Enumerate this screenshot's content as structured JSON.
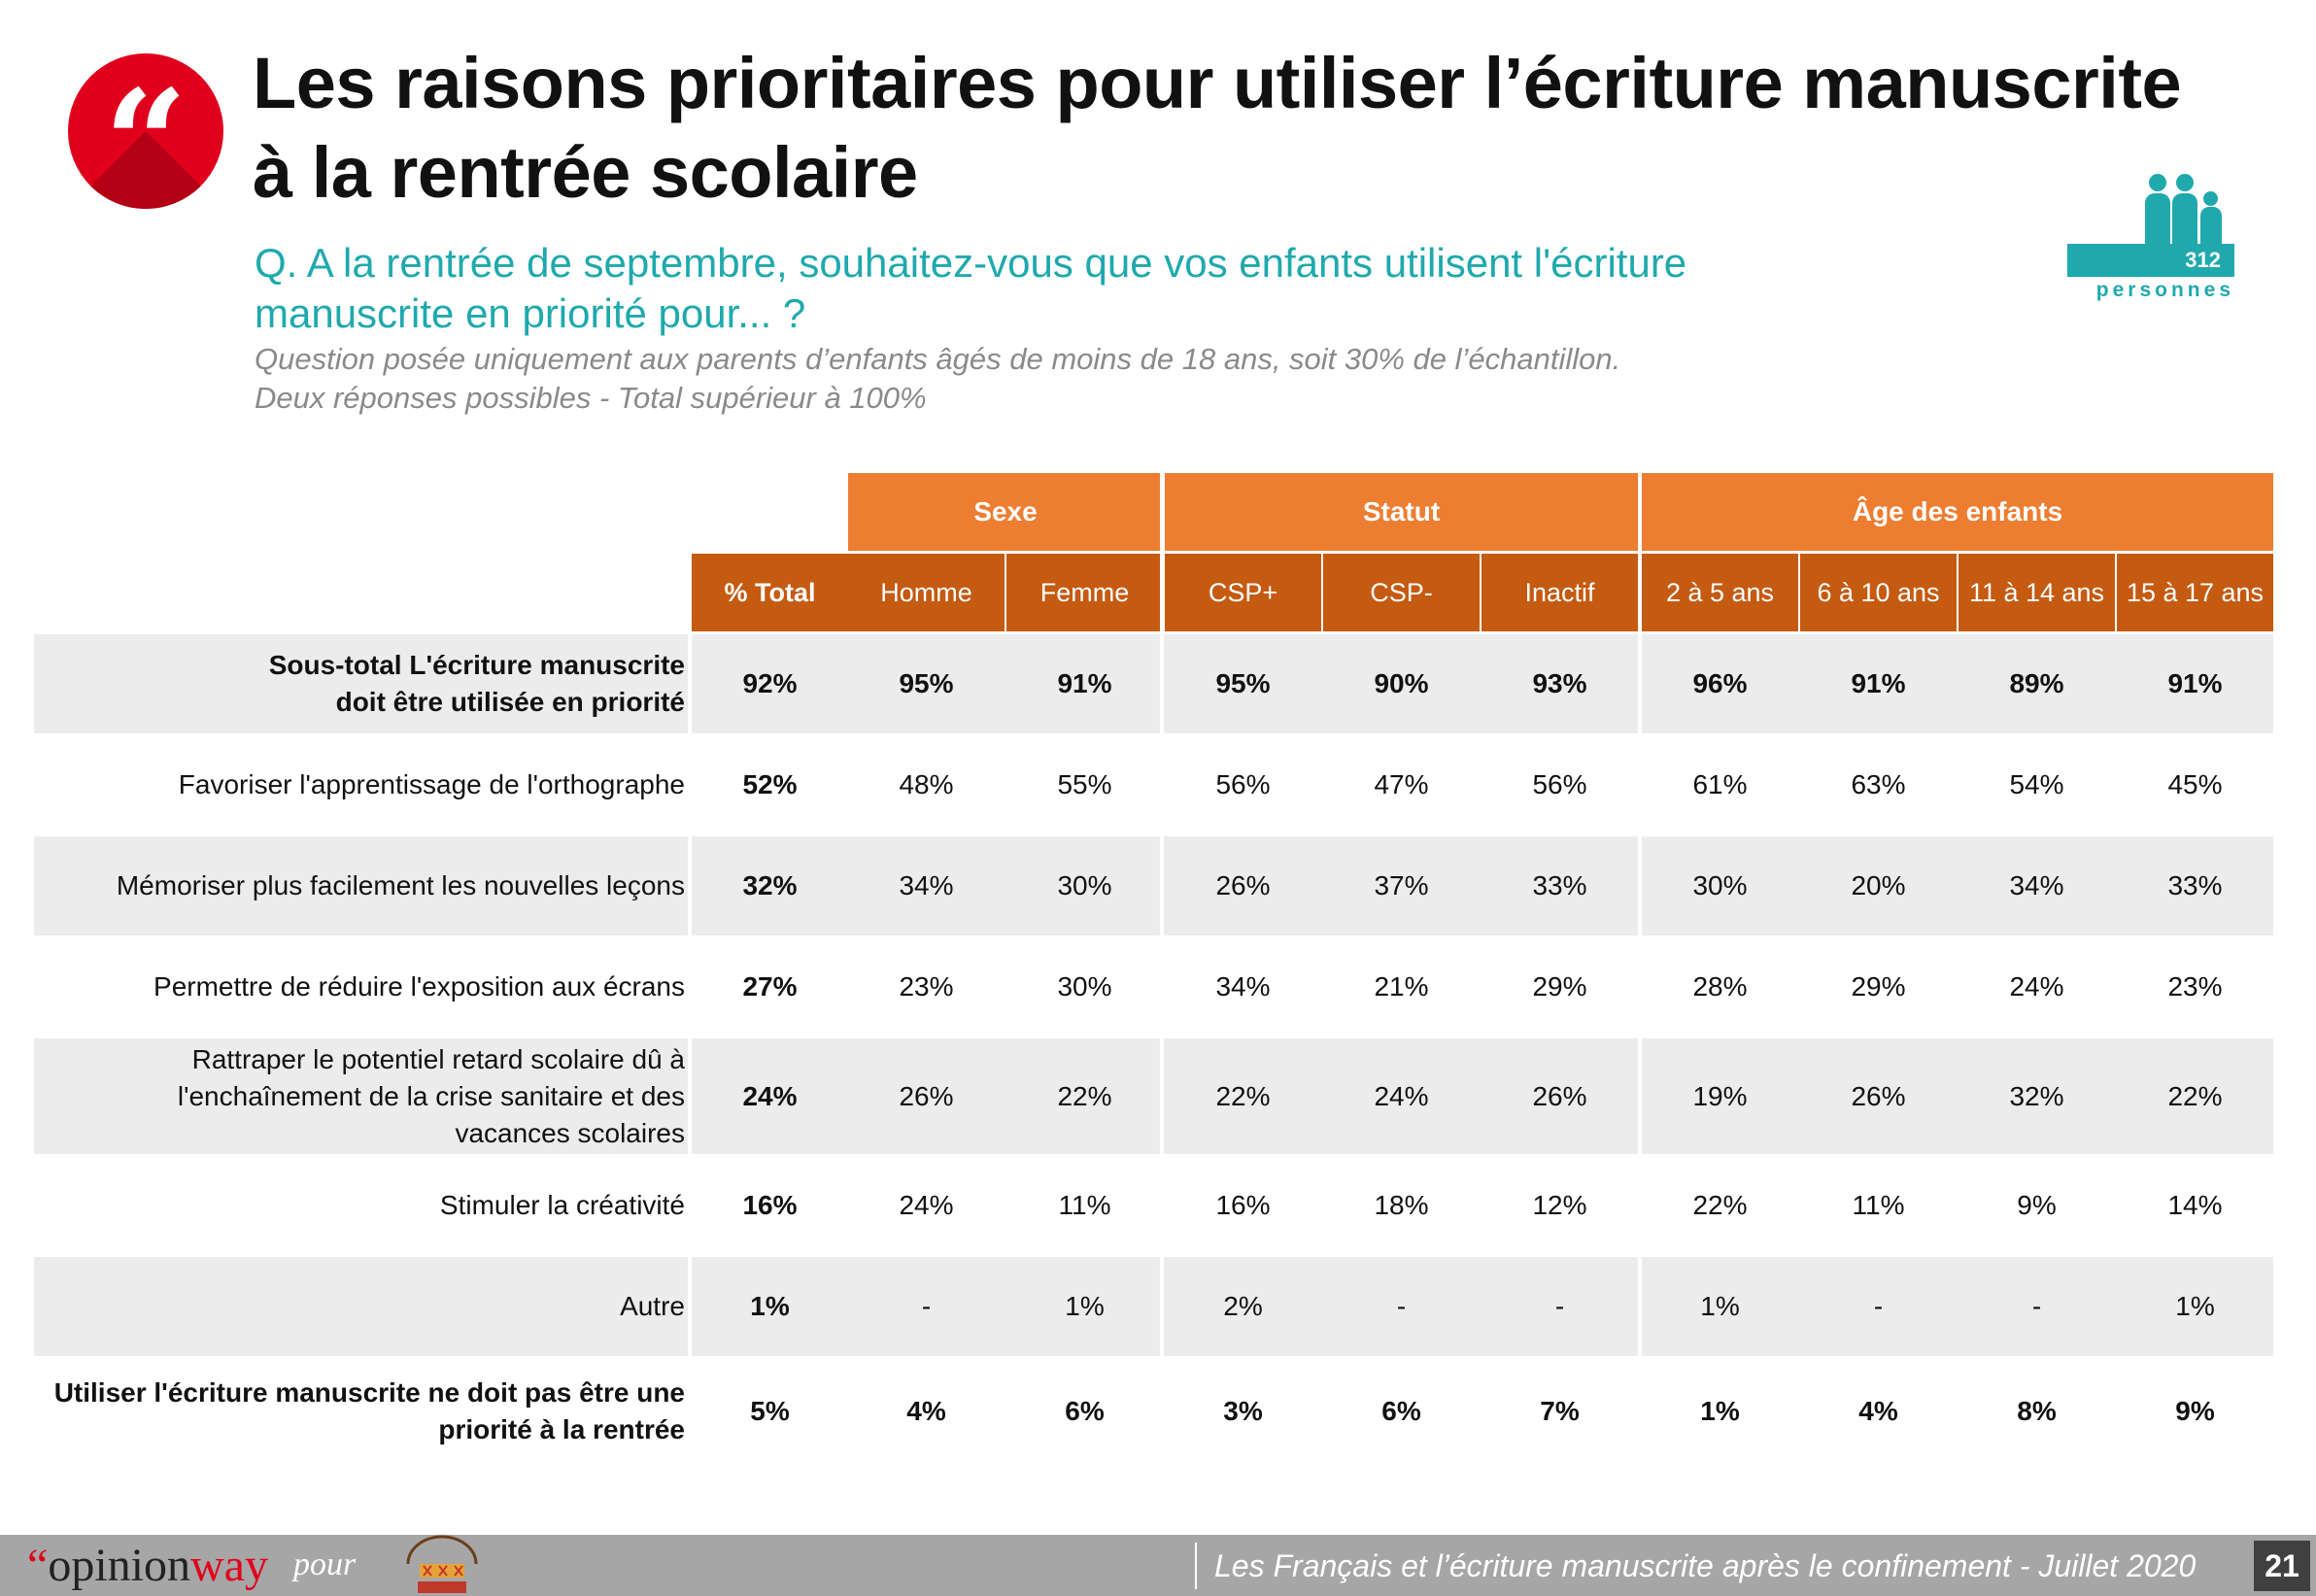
{
  "header": {
    "title_line1": "Les raisons prioritaires pour utiliser l’écriture manuscrite",
    "title_line2": "à la rentrée scolaire",
    "quote_glyph": "“",
    "question_line1": "Q. A la rentrée de septembre, souhaitez-vous que vos enfants utilisent l'écriture",
    "question_line2": "manuscrite en priorité pour... ?",
    "note_line1": "Question posée uniquement aux parents d’enfants âgés de moins de 18 ans, soit 30% de l’échantillon.",
    "note_line2": "Deux réponses possibles - Total supérieur à 100%",
    "sample_count": "312",
    "sample_label": "personnes"
  },
  "table": {
    "groups": [
      {
        "label": "Sexe"
      },
      {
        "label": "Statut"
      },
      {
        "label": "Âge des enfants"
      }
    ],
    "columns": [
      "% Total",
      "Homme",
      "Femme",
      "CSP+",
      "CSP-",
      "Inactif",
      "2 à 5 ans",
      "6 à 10 ans",
      "11 à 14 ans",
      "15 à 17 ans"
    ],
    "rows": [
      {
        "label_lines": [
          "Sous-total L'écriture manuscrite",
          "doit être utilisée en priorité"
        ],
        "values": [
          "92%",
          "95%",
          "91%",
          "95%",
          "90%",
          "93%",
          "96%",
          "91%",
          "89%",
          "91%"
        ]
      },
      {
        "label_lines": [
          "Favoriser l'apprentissage de l'orthographe"
        ],
        "values": [
          "52%",
          "48%",
          "55%",
          "56%",
          "47%",
          "56%",
          "61%",
          "63%",
          "54%",
          "45%"
        ]
      },
      {
        "label_lines": [
          "Mémoriser plus facilement les nouvelles leçons"
        ],
        "values": [
          "32%",
          "34%",
          "30%",
          "26%",
          "37%",
          "33%",
          "30%",
          "20%",
          "34%",
          "33%"
        ]
      },
      {
        "label_lines": [
          "Permettre de réduire l'exposition aux écrans"
        ],
        "values": [
          "27%",
          "23%",
          "30%",
          "34%",
          "21%",
          "29%",
          "28%",
          "29%",
          "24%",
          "23%"
        ]
      },
      {
        "label_lines": [
          "Rattraper le potentiel retard scolaire dû à",
          "l'enchaînement de la crise sanitaire et des",
          "vacances scolaires"
        ],
        "values": [
          "24%",
          "26%",
          "22%",
          "22%",
          "24%",
          "26%",
          "19%",
          "26%",
          "32%",
          "22%"
        ]
      },
      {
        "label_lines": [
          "Stimuler la créativité"
        ],
        "values": [
          "16%",
          "24%",
          "11%",
          "16%",
          "18%",
          "12%",
          "22%",
          "11%",
          "9%",
          "14%"
        ]
      },
      {
        "label_lines": [
          "Autre"
        ],
        "values": [
          "1%",
          "-",
          "1%",
          "2%",
          "-",
          "-",
          "1%",
          "-",
          "-",
          "1%"
        ]
      },
      {
        "label_lines": [
          "Utiliser l'écriture manuscrite ne doit pas être une",
          "priorité à la rentrée"
        ],
        "values": [
          "5%",
          "4%",
          "6%",
          "3%",
          "6%",
          "7%",
          "1%",
          "4%",
          "8%",
          "9%"
        ]
      }
    ]
  },
  "footer": {
    "brand_prefix": "“",
    "brand_a": "opinion",
    "brand_b": "way",
    "pour": "pour",
    "subject": "Les Français et l’écriture manuscrite après le confinement - Juillet 2020",
    "page": "21"
  },
  "colors": {
    "group_header": "#ed7d31",
    "column_header": "#c55a11",
    "accent_teal": "#1fa9ad",
    "badge_red": "#e0001b",
    "row_shade": "#ececec"
  }
}
